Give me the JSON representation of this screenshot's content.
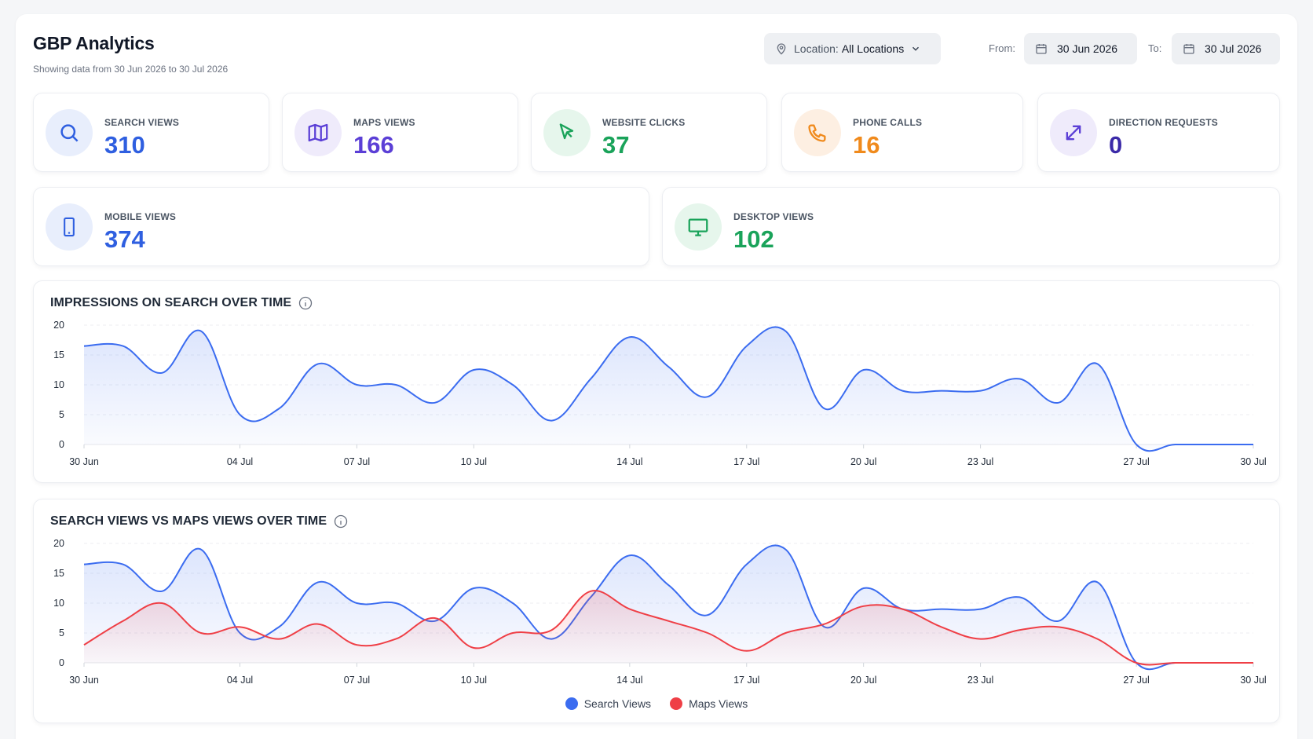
{
  "header": {
    "title": "GBP Analytics",
    "subtitle": "Showing data from 30 Jun 2026 to 30 Jul 2026"
  },
  "filters": {
    "location_label": "Location:",
    "location_value": "All Locations",
    "from_label": "From:",
    "from_date": "30 Jun 2026",
    "to_label": "To:",
    "to_date": "30 Jul 2026"
  },
  "stats": [
    {
      "label": "SEARCH VIEWS",
      "value": "310",
      "icon": "search-icon",
      "color": "#2f5fe0",
      "bg": "#e8eefc"
    },
    {
      "label": "MAPS VIEWS",
      "value": "166",
      "icon": "map-icon",
      "color": "#5b3fd6",
      "bg": "#efebfb"
    },
    {
      "label": "WEBSITE CLICKS",
      "value": "37",
      "icon": "cursor-icon",
      "color": "#1aa35a",
      "bg": "#e6f6ec"
    },
    {
      "label": "PHONE CALLS",
      "value": "16",
      "icon": "phone-icon",
      "color": "#f08a1c",
      "bg": "#fdefe2"
    },
    {
      "label": "DIRECTION REQUESTS",
      "value": "0",
      "icon": "direction-icon",
      "color": "#3b2aa8",
      "bg": "#efebfb"
    },
    {
      "label": "MOBILE VIEWS",
      "value": "374",
      "icon": "mobile-icon",
      "color": "#2f5fe0",
      "bg": "#e8eefc"
    },
    {
      "label": "DESKTOP VIEWS",
      "value": "102",
      "icon": "desktop-icon",
      "color": "#1aa35a",
      "bg": "#e6f6ec"
    }
  ],
  "charts": {
    "impressions_title": "IMPRESSIONS ON SEARCH OVER TIME",
    "comparison_title": "SEARCH VIEWS VS MAPS VIEWS OVER TIME",
    "legend_search": "Search Views",
    "legend_maps": "Maps Views"
  },
  "colors": {
    "search": "#3b6cf0",
    "maps": "#ef3f46"
  },
  "chart_data": [
    {
      "type": "area",
      "title": "IMPRESSIONS ON SEARCH OVER TIME",
      "xlabel": "",
      "ylabel": "",
      "ylim": [
        0,
        20
      ],
      "yticks": [
        0,
        5,
        10,
        15,
        20
      ],
      "x_ticks": [
        "30 Jun",
        "04 Jul",
        "07 Jul",
        "10 Jul",
        "14 Jul",
        "17 Jul",
        "20 Jul",
        "23 Jul",
        "27 Jul",
        "30 Jul"
      ],
      "x_tick_days": [
        0,
        4,
        7,
        10,
        14,
        17,
        20,
        23,
        27,
        30
      ],
      "grid": true,
      "series": [
        {
          "values": [
            16.5,
            16.5,
            12,
            19,
            5,
            6,
            13.5,
            10,
            10,
            7,
            12.5,
            10,
            4,
            11,
            18,
            13,
            8,
            16.5,
            19,
            6,
            12.5,
            9,
            9,
            9,
            11,
            7,
            13.5,
            0,
            0,
            0,
            0
          ]
        }
      ]
    },
    {
      "type": "area",
      "title": "SEARCH VIEWS VS MAPS VIEWS OVER TIME",
      "xlabel": "",
      "ylabel": "",
      "ylim": [
        0,
        20
      ],
      "yticks": [
        0,
        5,
        10,
        15,
        20
      ],
      "x_ticks": [
        "30 Jun",
        "04 Jul",
        "07 Jul",
        "10 Jul",
        "14 Jul",
        "17 Jul",
        "20 Jul",
        "23 Jul",
        "27 Jul",
        "30 Jul"
      ],
      "x_tick_days": [
        0,
        4,
        7,
        10,
        14,
        17,
        20,
        23,
        27,
        30
      ],
      "grid": true,
      "legend": "bottom-center",
      "series": [
        {
          "name": "Search Views",
          "values": [
            16.5,
            16.5,
            12,
            19,
            5,
            6,
            13.5,
            10,
            10,
            7,
            12.5,
            10,
            4,
            11,
            18,
            13,
            8,
            16.5,
            19,
            6,
            12.5,
            9,
            9,
            9,
            11,
            7,
            13.5,
            0,
            0,
            0,
            0
          ]
        },
        {
          "name": "Maps Views",
          "values": [
            3,
            7,
            10,
            5,
            6,
            4,
            6.5,
            3,
            4,
            7.5,
            2.5,
            5,
            5.5,
            12,
            9,
            7,
            5,
            2,
            5,
            6.5,
            9.5,
            9,
            6,
            4,
            5.5,
            6,
            4,
            0,
            0,
            0,
            0
          ]
        }
      ]
    }
  ]
}
